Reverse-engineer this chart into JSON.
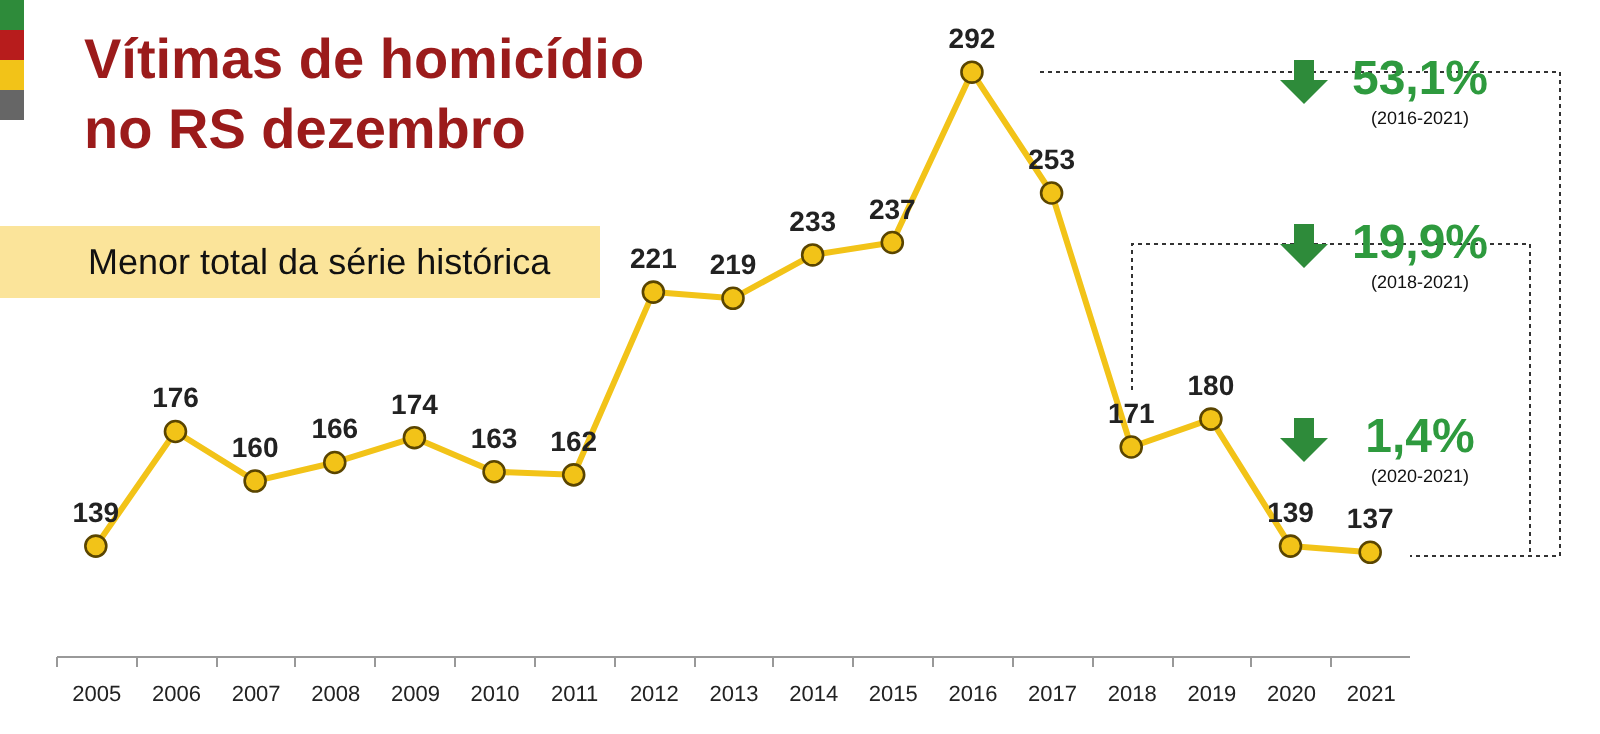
{
  "chart_data": {
    "type": "line",
    "title": "Vítimas de homicídio no RS dezembro",
    "subtitle": "Menor total da série histórica",
    "categories": [
      "2005",
      "2006",
      "2007",
      "2008",
      "2009",
      "2010",
      "2011",
      "2012",
      "2013",
      "2014",
      "2015",
      "2016",
      "2017",
      "2018",
      "2019",
      "2020",
      "2021"
    ],
    "series": [
      {
        "color": "#f2c318",
        "values": [
          139,
          176,
          160,
          166,
          174,
          163,
          162,
          221,
          219,
          233,
          237,
          292,
          253,
          171,
          180,
          139,
          137
        ]
      }
    ],
    "data_labels": true,
    "marker": "circle",
    "annotations": [
      "53,1%",
      "(2016-2021)",
      "19,9%",
      "(2018-2021)",
      "1,4%",
      "(2020-2021)"
    ]
  }
}
